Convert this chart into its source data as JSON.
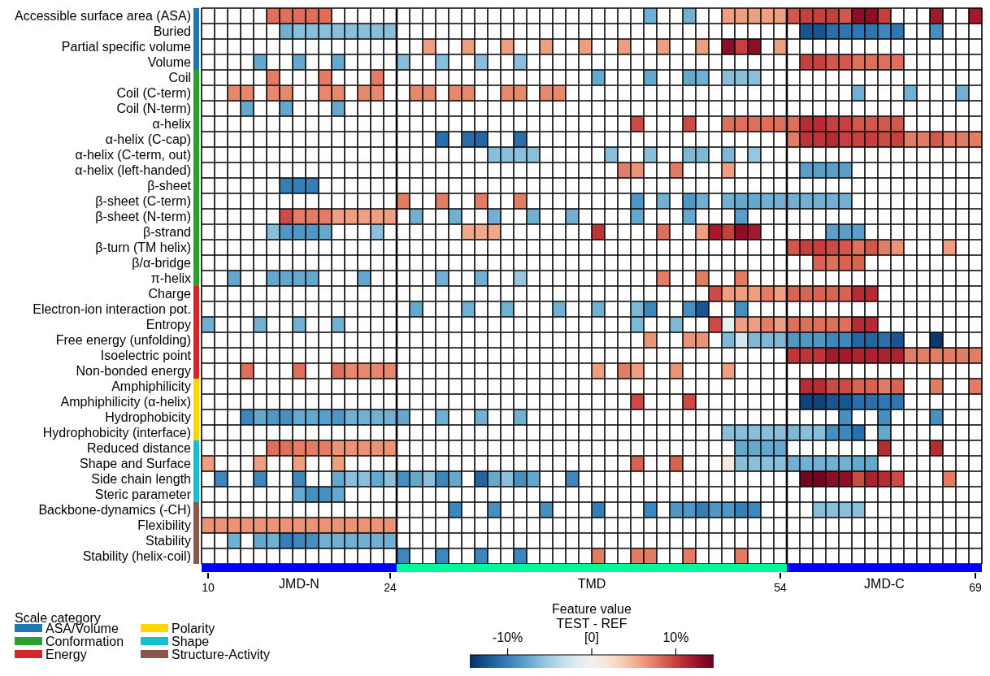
{
  "chart_data": {
    "type": "heatmap",
    "x": [
      10,
      11,
      12,
      13,
      14,
      15,
      16,
      17,
      18,
      19,
      20,
      21,
      22,
      23,
      24,
      25,
      26,
      27,
      28,
      29,
      30,
      31,
      32,
      33,
      34,
      35,
      36,
      37,
      38,
      39,
      40,
      41,
      42,
      43,
      44,
      45,
      46,
      47,
      48,
      49,
      50,
      51,
      52,
      53,
      54,
      55,
      56,
      57,
      58,
      59,
      60,
      61,
      62,
      63,
      64,
      65,
      66,
      67,
      68,
      69
    ],
    "xlim": [
      9.5,
      69.5
    ],
    "xticks": [
      10,
      24,
      54,
      69
    ],
    "y_categories": [
      "Accessible surface area (ASA)",
      "Buried",
      "Partial specific volume",
      "Volume",
      "Coil",
      "Coil (C-term)",
      "Coil (N-term)",
      "α-helix",
      "α-helix (C-cap)",
      "α-helix (C-term, out)",
      "α-helix (left-handed)",
      "β-sheet",
      "β-sheet (C-term)",
      "β-sheet (N-term)",
      "β-strand",
      "β-turn (TM helix)",
      "β/α-bridge",
      "π-helix",
      "Charge",
      "Electron-ion interaction pot.",
      "Entropy",
      "Free energy (unfolding)",
      "Isoelectric point",
      "Non-bonded energy",
      "Amphiphilicity",
      "Amphiphilicity (α-helix)",
      "Hydrophobicity",
      "Hydrophobicity (interface)",
      "Reduced distance",
      "Shape and Surface",
      "Side chain length",
      "Steric parameter",
      "Backbone-dynamics (-CH)",
      "Flexibility",
      "Stability",
      "Stability (helix-coil)"
    ],
    "cells": [
      [
        null,
        null,
        null,
        null,
        null,
        8,
        8,
        8,
        8,
        8,
        null,
        null,
        null,
        null,
        null,
        null,
        null,
        null,
        null,
        null,
        null,
        null,
        null,
        null,
        null,
        null,
        null,
        null,
        null,
        null,
        null,
        null,
        null,
        null,
        -7,
        null,
        null,
        -7,
        null,
        null,
        6,
        6,
        6,
        6,
        6,
        9,
        10,
        10,
        10,
        9,
        13,
        13,
        10,
        null,
        null,
        null,
        12,
        null,
        null,
        12
      ],
      [
        null,
        null,
        null,
        null,
        null,
        null,
        -7,
        -6,
        -6,
        -6,
        -6,
        -6,
        -6,
        -6,
        -6,
        null,
        null,
        null,
        null,
        null,
        null,
        null,
        null,
        null,
        null,
        null,
        null,
        null,
        null,
        null,
        null,
        null,
        null,
        null,
        null,
        null,
        null,
        null,
        null,
        null,
        null,
        null,
        null,
        null,
        null,
        null,
        -12.5,
        -12.5,
        -11,
        -10.5,
        -10.5,
        -10.5,
        -9.5,
        -10.5,
        null,
        null,
        -9,
        null,
        null,
        null
      ],
      [
        null,
        null,
        null,
        null,
        null,
        null,
        null,
        null,
        null,
        null,
        null,
        null,
        null,
        null,
        null,
        null,
        null,
        6,
        null,
        null,
        6,
        null,
        null,
        6,
        null,
        null,
        6,
        null,
        null,
        6,
        null,
        null,
        6,
        null,
        null,
        6,
        null,
        null,
        6,
        null,
        13,
        10,
        13,
        null,
        6,
        null,
        null,
        null,
        null,
        null,
        null,
        null,
        null,
        null,
        null,
        null,
        null,
        null,
        null,
        null
      ],
      [
        null,
        null,
        null,
        null,
        -7.5,
        null,
        null,
        -7.5,
        null,
        null,
        -7.5,
        null,
        null,
        null,
        null,
        -6,
        null,
        null,
        -6,
        null,
        null,
        -6,
        null,
        null,
        -6,
        null,
        null,
        null,
        null,
        null,
        null,
        null,
        null,
        null,
        null,
        null,
        null,
        null,
        null,
        null,
        null,
        null,
        null,
        null,
        null,
        null,
        10,
        10,
        9,
        9,
        8,
        8,
        8,
        8,
        null,
        null,
        null,
        null,
        null,
        null
      ],
      [
        null,
        null,
        null,
        null,
        null,
        7.5,
        null,
        null,
        null,
        7.5,
        null,
        null,
        null,
        7.5,
        null,
        null,
        null,
        null,
        null,
        null,
        null,
        null,
        null,
        null,
        null,
        null,
        null,
        null,
        null,
        null,
        -7.5,
        null,
        null,
        null,
        -7.5,
        null,
        null,
        -7.5,
        -7,
        null,
        -6,
        -6,
        -6,
        null,
        null,
        null,
        null,
        null,
        null,
        null,
        null,
        null,
        null,
        null,
        null,
        null,
        null,
        null,
        null,
        null
      ],
      [
        null,
        null,
        7,
        7,
        null,
        7,
        7,
        null,
        null,
        7,
        7,
        null,
        7,
        7,
        null,
        null,
        7,
        7,
        null,
        7,
        7,
        null,
        null,
        7,
        7,
        null,
        7,
        7,
        null,
        null,
        null,
        null,
        null,
        null,
        null,
        null,
        null,
        null,
        null,
        null,
        null,
        null,
        null,
        null,
        null,
        null,
        null,
        null,
        null,
        null,
        -7,
        null,
        null,
        null,
        -7,
        null,
        null,
        null,
        -7,
        null
      ],
      [
        null,
        null,
        null,
        -7.5,
        null,
        null,
        -7.5,
        null,
        null,
        null,
        -7.5,
        null,
        null,
        null,
        null,
        null,
        null,
        null,
        null,
        null,
        null,
        null,
        null,
        null,
        null,
        null,
        null,
        null,
        null,
        null,
        null,
        null,
        null,
        null,
        null,
        null,
        null,
        null,
        null,
        null,
        null,
        null,
        null,
        null,
        null,
        null,
        null,
        null,
        null,
        null,
        null,
        null,
        null,
        null,
        null,
        null,
        null,
        null,
        null,
        null
      ],
      [
        null,
        null,
        null,
        null,
        null,
        null,
        null,
        null,
        null,
        null,
        null,
        null,
        null,
        null,
        null,
        null,
        null,
        null,
        null,
        null,
        null,
        null,
        null,
        null,
        null,
        null,
        null,
        null,
        null,
        null,
        null,
        null,
        null,
        9.5,
        null,
        null,
        null,
        9.5,
        null,
        null,
        8,
        8,
        8,
        8,
        8,
        8,
        11,
        11,
        10,
        10,
        9,
        9,
        9,
        9,
        null,
        null,
        null,
        null,
        null,
        null
      ],
      [
        null,
        null,
        null,
        null,
        null,
        null,
        null,
        null,
        null,
        null,
        null,
        null,
        null,
        null,
        null,
        null,
        null,
        null,
        -11,
        null,
        -11,
        -11.5,
        null,
        null,
        -11,
        null,
        null,
        null,
        null,
        null,
        null,
        null,
        null,
        null,
        null,
        null,
        null,
        null,
        null,
        null,
        null,
        null,
        null,
        null,
        null,
        7.5,
        10.5,
        10.5,
        11,
        10,
        10,
        10,
        9.5,
        10,
        7.5,
        7.5,
        9,
        7.5,
        7.5,
        7.5
      ],
      [
        null,
        null,
        null,
        null,
        null,
        null,
        null,
        null,
        null,
        null,
        null,
        null,
        null,
        null,
        null,
        null,
        null,
        null,
        null,
        null,
        null,
        null,
        -6,
        -6,
        -6,
        -6,
        null,
        null,
        null,
        null,
        null,
        -6,
        null,
        null,
        -6,
        null,
        null,
        -6.5,
        -6.5,
        null,
        -6.5,
        null,
        -5.5,
        null,
        null,
        null,
        null,
        null,
        null,
        null,
        null,
        null,
        null,
        null,
        null,
        null,
        null,
        null,
        null,
        null
      ],
      [
        null,
        null,
        null,
        null,
        null,
        null,
        null,
        null,
        null,
        null,
        null,
        null,
        null,
        null,
        null,
        null,
        null,
        null,
        null,
        null,
        null,
        null,
        null,
        null,
        null,
        null,
        null,
        null,
        null,
        null,
        null,
        null,
        7.5,
        6.5,
        null,
        null,
        7.5,
        null,
        null,
        null,
        6,
        null,
        null,
        null,
        null,
        null,
        -8,
        -8,
        -8,
        -8,
        null,
        null,
        null,
        null,
        null,
        null,
        null,
        null,
        null,
        null
      ],
      [
        null,
        null,
        null,
        null,
        null,
        null,
        -10,
        -10,
        -10,
        null,
        null,
        null,
        null,
        null,
        null,
        null,
        null,
        null,
        null,
        null,
        null,
        null,
        null,
        null,
        null,
        null,
        null,
        null,
        null,
        null,
        null,
        null,
        null,
        null,
        null,
        null,
        null,
        null,
        null,
        null,
        null,
        null,
        null,
        null,
        null,
        null,
        null,
        null,
        null,
        null,
        null,
        null,
        null,
        null,
        null,
        null,
        null,
        null,
        null,
        null
      ],
      [
        null,
        null,
        null,
        null,
        null,
        null,
        null,
        null,
        null,
        null,
        null,
        null,
        null,
        null,
        null,
        7.5,
        null,
        null,
        7.5,
        null,
        null,
        7.5,
        null,
        null,
        7.5,
        null,
        null,
        null,
        null,
        null,
        null,
        null,
        null,
        -8.5,
        null,
        -7,
        null,
        -8.5,
        -7,
        null,
        -7,
        -7.5,
        -7.5,
        -7,
        -7,
        -7,
        -7,
        -7,
        -7,
        -7,
        null,
        null,
        null,
        null,
        null,
        null,
        null,
        null,
        null,
        null
      ],
      [
        null,
        null,
        null,
        null,
        null,
        null,
        9.5,
        7.5,
        7.5,
        7.5,
        6,
        6,
        6,
        6,
        6,
        null,
        -7,
        null,
        null,
        -7,
        null,
        null,
        -7,
        null,
        null,
        -7,
        null,
        null,
        -7,
        null,
        null,
        null,
        null,
        -7.5,
        null,
        null,
        null,
        -7.5,
        null,
        null,
        null,
        -8,
        null,
        null,
        null,
        null,
        null,
        null,
        null,
        null,
        null,
        null,
        null,
        null,
        null,
        null,
        null,
        null,
        null,
        null
      ],
      [
        null,
        null,
        null,
        null,
        null,
        -6,
        -8.5,
        -8.5,
        -8.5,
        -7.5,
        null,
        null,
        null,
        -6,
        null,
        null,
        null,
        null,
        null,
        null,
        5.5,
        5.5,
        5.5,
        null,
        null,
        null,
        null,
        null,
        null,
        null,
        10.5,
        null,
        null,
        null,
        null,
        8,
        null,
        null,
        6,
        12,
        10,
        13,
        12,
        null,
        null,
        null,
        null,
        null,
        -8,
        -8,
        -8,
        null,
        null,
        null,
        null,
        null,
        null,
        null,
        null,
        null
      ],
      [
        null,
        null,
        null,
        null,
        null,
        null,
        null,
        null,
        null,
        null,
        null,
        null,
        null,
        null,
        null,
        null,
        null,
        null,
        null,
        null,
        null,
        null,
        null,
        null,
        null,
        null,
        null,
        null,
        null,
        null,
        null,
        null,
        null,
        null,
        null,
        null,
        null,
        null,
        null,
        null,
        null,
        null,
        null,
        null,
        null,
        9,
        10,
        10,
        9.5,
        9,
        8,
        9,
        7.5,
        6.5,
        null,
        null,
        null,
        6,
        null,
        null
      ],
      [
        null,
        null,
        null,
        null,
        null,
        null,
        null,
        null,
        null,
        null,
        null,
        null,
        null,
        null,
        null,
        null,
        null,
        null,
        null,
        null,
        null,
        null,
        null,
        null,
        null,
        null,
        null,
        null,
        null,
        null,
        null,
        null,
        null,
        null,
        null,
        null,
        null,
        null,
        null,
        null,
        null,
        null,
        null,
        null,
        null,
        null,
        null,
        8.5,
        8,
        8.5,
        8.5,
        null,
        null,
        null,
        null,
        null,
        null,
        null,
        null,
        null
      ],
      [
        null,
        null,
        -7.5,
        null,
        null,
        -7.5,
        -7.5,
        -7.5,
        -7.5,
        null,
        null,
        null,
        -7.5,
        null,
        null,
        null,
        null,
        null,
        -7,
        null,
        null,
        -7,
        null,
        null,
        -5.5,
        null,
        null,
        null,
        null,
        null,
        null,
        null,
        null,
        null,
        null,
        7.5,
        null,
        null,
        7.5,
        null,
        null,
        7.5,
        null,
        null,
        null,
        null,
        null,
        null,
        null,
        null,
        null,
        null,
        null,
        null,
        null,
        null,
        null,
        null,
        null,
        null
      ],
      [
        null,
        null,
        null,
        null,
        null,
        null,
        null,
        null,
        null,
        null,
        null,
        null,
        null,
        null,
        null,
        null,
        null,
        null,
        null,
        null,
        null,
        null,
        null,
        null,
        null,
        null,
        null,
        null,
        null,
        null,
        null,
        null,
        null,
        null,
        null,
        null,
        null,
        null,
        null,
        9.5,
        6,
        6,
        6,
        7.5,
        6,
        8.5,
        8.5,
        8.5,
        8.5,
        8.5,
        11,
        11,
        null,
        null,
        null,
        null,
        null,
        null,
        null,
        null
      ],
      [
        null,
        null,
        null,
        null,
        null,
        null,
        null,
        null,
        null,
        null,
        null,
        null,
        null,
        null,
        null,
        null,
        -7.5,
        null,
        null,
        null,
        -7,
        null,
        null,
        -7,
        null,
        null,
        null,
        -7,
        null,
        null,
        -7,
        null,
        null,
        -6.5,
        -9.5,
        null,
        null,
        -9,
        -12.5,
        null,
        null,
        -9,
        null,
        null,
        null,
        null,
        null,
        null,
        null,
        null,
        null,
        null,
        null,
        null,
        null,
        null,
        null,
        null,
        null,
        null
      ],
      [
        -7,
        null,
        null,
        null,
        -7,
        null,
        null,
        -7,
        null,
        null,
        -7,
        null,
        null,
        null,
        null,
        null,
        null,
        null,
        null,
        null,
        null,
        null,
        null,
        null,
        null,
        null,
        null,
        null,
        null,
        null,
        null,
        null,
        null,
        -6.5,
        null,
        null,
        -6.5,
        null,
        null,
        9.5,
        -1,
        6,
        6,
        7.5,
        6,
        8,
        8,
        8,
        8,
        8,
        11,
        11,
        null,
        null,
        null,
        null,
        null,
        null,
        null,
        null
      ],
      [
        null,
        null,
        null,
        null,
        null,
        null,
        null,
        null,
        null,
        null,
        null,
        null,
        null,
        null,
        null,
        null,
        null,
        null,
        null,
        null,
        null,
        null,
        null,
        null,
        null,
        null,
        null,
        null,
        null,
        null,
        null,
        null,
        null,
        null,
        6.5,
        null,
        null,
        6.5,
        6.5,
        null,
        -6.5,
        -2.5,
        -6.5,
        -6.5,
        -6.5,
        -8.5,
        -8.5,
        -8.5,
        -9.5,
        -9.5,
        -11.5,
        -11.5,
        -11,
        -12.5,
        null,
        null,
        -14,
        null,
        null,
        null
      ],
      [
        null,
        null,
        null,
        null,
        null,
        null,
        null,
        null,
        null,
        null,
        null,
        null,
        null,
        null,
        null,
        null,
        null,
        null,
        null,
        null,
        null,
        null,
        null,
        null,
        null,
        null,
        null,
        null,
        null,
        null,
        null,
        null,
        null,
        null,
        null,
        null,
        null,
        null,
        null,
        null,
        null,
        null,
        null,
        null,
        null,
        10.5,
        10.5,
        10.5,
        12,
        12,
        11.5,
        11.5,
        11.5,
        11.5,
        7.5,
        7.5,
        7.5,
        7.5,
        7.5,
        7.5
      ],
      [
        null,
        null,
        null,
        8,
        null,
        null,
        null,
        8,
        null,
        null,
        8,
        7,
        7,
        7,
        7,
        null,
        null,
        null,
        null,
        null,
        null,
        null,
        null,
        null,
        null,
        null,
        null,
        null,
        null,
        null,
        6,
        null,
        7.5,
        6,
        null,
        null,
        6.5,
        null,
        null,
        null,
        6,
        null,
        null,
        null,
        null,
        null,
        null,
        null,
        null,
        null,
        null,
        null,
        null,
        null,
        null,
        null,
        null,
        null,
        null,
        null
      ],
      [
        null,
        null,
        null,
        null,
        null,
        null,
        null,
        null,
        null,
        null,
        null,
        null,
        null,
        null,
        null,
        null,
        null,
        null,
        null,
        null,
        null,
        null,
        null,
        null,
        null,
        null,
        null,
        null,
        null,
        null,
        null,
        null,
        null,
        null,
        null,
        null,
        null,
        null,
        null,
        null,
        null,
        null,
        null,
        null,
        null,
        null,
        11,
        11,
        9.5,
        9.5,
        8.5,
        8.5,
        7.5,
        8.5,
        null,
        null,
        7.5,
        null,
        null,
        7.5
      ],
      [
        null,
        null,
        null,
        null,
        null,
        null,
        null,
        null,
        null,
        null,
        null,
        null,
        null,
        null,
        null,
        null,
        null,
        null,
        null,
        null,
        null,
        null,
        null,
        null,
        null,
        null,
        null,
        null,
        null,
        null,
        null,
        null,
        null,
        9.5,
        null,
        null,
        null,
        9.5,
        null,
        null,
        null,
        null,
        null,
        null,
        null,
        null,
        -13.5,
        -13.5,
        -12.5,
        -12.5,
        -11,
        -11,
        -10.5,
        -10.5,
        null,
        null,
        null,
        null,
        null,
        null
      ],
      [
        null,
        null,
        null,
        -9.5,
        -7.5,
        -8.5,
        -9,
        -7.5,
        -7.5,
        -8,
        -8.5,
        -7,
        -7,
        -7,
        -7,
        -7.5,
        null,
        null,
        -7,
        null,
        null,
        -7,
        null,
        null,
        -7,
        null,
        null,
        null,
        null,
        null,
        null,
        null,
        null,
        null,
        null,
        null,
        null,
        null,
        null,
        null,
        null,
        null,
        null,
        null,
        null,
        null,
        null,
        null,
        null,
        -9,
        null,
        null,
        -9,
        null,
        null,
        null,
        -9,
        null,
        null,
        null
      ],
      [
        null,
        null,
        null,
        null,
        null,
        null,
        null,
        null,
        null,
        null,
        null,
        null,
        null,
        null,
        null,
        null,
        null,
        null,
        null,
        null,
        null,
        null,
        null,
        null,
        null,
        null,
        null,
        null,
        null,
        null,
        null,
        null,
        null,
        null,
        null,
        null,
        null,
        null,
        null,
        null,
        -6,
        -6,
        -6,
        -6,
        -6,
        -6.5,
        -6,
        -6,
        -9,
        -9.5,
        -11,
        null,
        -7.5,
        null,
        null,
        null,
        null,
        null,
        null,
        null
      ],
      [
        null,
        null,
        null,
        null,
        null,
        8,
        8,
        7.5,
        7.5,
        7.5,
        6.5,
        6.5,
        6.5,
        6.5,
        6.5,
        null,
        null,
        null,
        null,
        null,
        null,
        null,
        null,
        null,
        null,
        null,
        null,
        null,
        null,
        null,
        null,
        null,
        null,
        null,
        null,
        null,
        null,
        null,
        null,
        null,
        null,
        -7.5,
        -7.5,
        -7.5,
        -7.5,
        null,
        null,
        null,
        null,
        null,
        null,
        null,
        11,
        null,
        null,
        null,
        11,
        null,
        null,
        null
      ],
      [
        6,
        null,
        null,
        null,
        6,
        null,
        null,
        6,
        null,
        null,
        6,
        null,
        null,
        null,
        null,
        null,
        null,
        null,
        null,
        null,
        null,
        null,
        null,
        null,
        null,
        null,
        null,
        null,
        null,
        null,
        null,
        null,
        null,
        8.5,
        null,
        null,
        8.5,
        null,
        null,
        null,
        1.5,
        -6,
        -6,
        -6,
        -6,
        -7,
        -7,
        -7,
        -7,
        -7,
        -7.5,
        -7.5,
        null,
        null,
        null,
        null,
        null,
        null,
        null,
        null
      ],
      [
        null,
        -9.5,
        null,
        null,
        -9.5,
        null,
        null,
        -9.5,
        null,
        null,
        -7.5,
        -6,
        -6,
        -7.5,
        -6,
        -9,
        -7.5,
        -6,
        -9.5,
        -7.5,
        null,
        -11.5,
        -7.5,
        -6,
        -9,
        -7.5,
        null,
        null,
        -9.5,
        null,
        null,
        null,
        null,
        null,
        null,
        null,
        null,
        null,
        null,
        null,
        null,
        null,
        null,
        null,
        null,
        null,
        14,
        14,
        13,
        13,
        9.5,
        11.5,
        11,
        9.5,
        null,
        null,
        null,
        7.5,
        null,
        null
      ],
      [
        null,
        null,
        null,
        null,
        null,
        null,
        null,
        -7.5,
        -9,
        -9,
        -7.5,
        null,
        null,
        null,
        null,
        null,
        null,
        null,
        null,
        null,
        null,
        null,
        null,
        null,
        null,
        null,
        null,
        null,
        null,
        null,
        null,
        null,
        null,
        null,
        null,
        null,
        null,
        null,
        null,
        null,
        null,
        null,
        null,
        null,
        null,
        null,
        null,
        null,
        null,
        null,
        null,
        null,
        null,
        null,
        null,
        null,
        null,
        null,
        null,
        null
      ],
      [
        null,
        null,
        null,
        null,
        null,
        null,
        null,
        null,
        null,
        null,
        null,
        null,
        null,
        null,
        null,
        null,
        null,
        null,
        null,
        -9.5,
        null,
        null,
        -9,
        null,
        null,
        null,
        -9,
        null,
        null,
        null,
        -10,
        null,
        null,
        null,
        -9.5,
        null,
        -8.5,
        -8.5,
        -10,
        -8.5,
        -8.5,
        -10,
        -9.5,
        null,
        null,
        null,
        null,
        -6,
        -6,
        -6,
        -6,
        null,
        null,
        null,
        null,
        null,
        null,
        null,
        null,
        null
      ],
      [
        6.5,
        6.5,
        6.5,
        6.5,
        6.5,
        6.5,
        6.5,
        6.5,
        6.5,
        6.5,
        6.5,
        6.5,
        6.5,
        6.5,
        6.5,
        null,
        null,
        null,
        null,
        null,
        null,
        null,
        null,
        null,
        null,
        null,
        null,
        null,
        null,
        null,
        null,
        null,
        null,
        null,
        null,
        null,
        null,
        null,
        null,
        null,
        null,
        null,
        null,
        null,
        null,
        null,
        null,
        null,
        null,
        null,
        null,
        null,
        null,
        null,
        null,
        null,
        null,
        null,
        null,
        null
      ],
      [
        null,
        null,
        -7,
        null,
        -7.5,
        -7,
        -10,
        -9.5,
        -9,
        -7,
        -7,
        -7,
        -7,
        -7,
        -7,
        null,
        null,
        null,
        null,
        null,
        null,
        null,
        null,
        null,
        null,
        null,
        null,
        null,
        null,
        null,
        null,
        null,
        null,
        null,
        null,
        null,
        null,
        null,
        null,
        null,
        null,
        null,
        null,
        null,
        null,
        null,
        null,
        null,
        null,
        null,
        null,
        null,
        null,
        null,
        null,
        null,
        null,
        null,
        null,
        null
      ],
      [
        null,
        null,
        null,
        null,
        null,
        null,
        null,
        null,
        null,
        null,
        null,
        null,
        null,
        null,
        null,
        -9.5,
        null,
        null,
        -9.5,
        null,
        null,
        -9.5,
        null,
        null,
        -9.5,
        null,
        null,
        null,
        null,
        null,
        7.5,
        null,
        null,
        7.5,
        7.5,
        null,
        null,
        7.5,
        null,
        null,
        null,
        7.5,
        null,
        null,
        null,
        null,
        null,
        null,
        null,
        null,
        null,
        null,
        null,
        null,
        null,
        null,
        null,
        null,
        null,
        null
      ]
    ],
    "clim": [
      -14.5,
      14.5
    ],
    "cticks": [
      {
        "value": -10,
        "label": "-10%"
      },
      {
        "value": 0,
        "label": "[0]"
      },
      {
        "value": 10,
        "label": "10%"
      }
    ],
    "clabel": "Feature value\nTEST - REF",
    "grid": true,
    "ref_lines": [
      {
        "axis": "x",
        "value": 24.5,
        "color": "#000000"
      },
      {
        "axis": "x",
        "value": 54.5,
        "color": "#000000"
      }
    ],
    "annotations": [
      "JMD-N",
      "TMD",
      "JMD-C",
      "ASA/Volume",
      "Conformation",
      "Energy",
      "Polarity",
      "Shape",
      "Structure-Activity"
    ],
    "legend_title": "Scale category"
  }
}
